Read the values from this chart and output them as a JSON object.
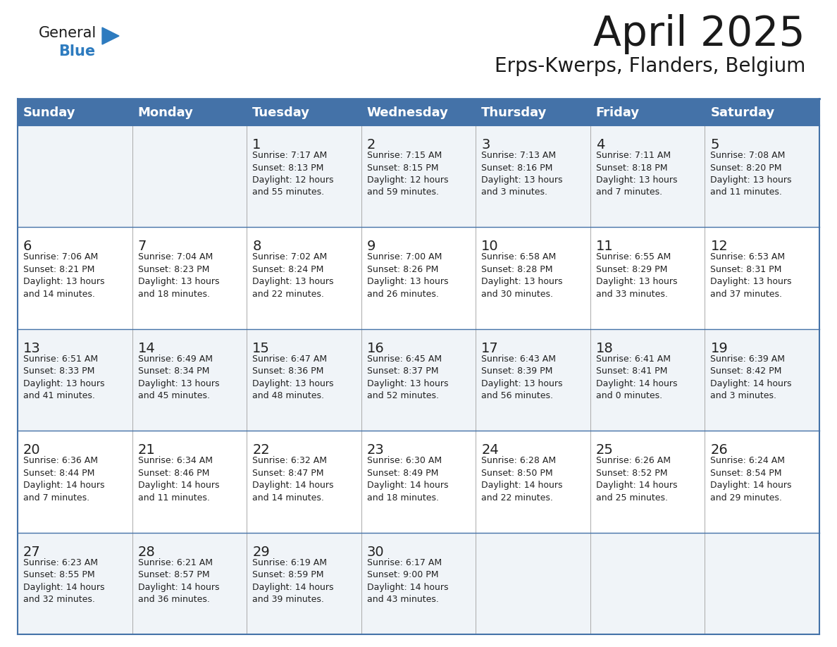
{
  "title": "April 2025",
  "subtitle": "Erps-Kwerps, Flanders, Belgium",
  "days_of_week": [
    "Sunday",
    "Monday",
    "Tuesday",
    "Wednesday",
    "Thursday",
    "Friday",
    "Saturday"
  ],
  "header_bg": "#4472a8",
  "header_text": "#ffffff",
  "cell_bg_even": "#f0f4f8",
  "cell_bg_odd": "#ffffff",
  "cell_text": "#222222",
  "border_color": "#4472a8",
  "grid_color": "#aaaaaa",
  "title_color": "#1a1a1a",
  "subtitle_color": "#1a1a1a",
  "logo_general_color": "#1a1a1a",
  "logo_blue_color": "#2d7bbf",
  "weeks": [
    [
      {
        "day": null,
        "info": ""
      },
      {
        "day": null,
        "info": ""
      },
      {
        "day": 1,
        "info": "Sunrise: 7:17 AM\nSunset: 8:13 PM\nDaylight: 12 hours\nand 55 minutes."
      },
      {
        "day": 2,
        "info": "Sunrise: 7:15 AM\nSunset: 8:15 PM\nDaylight: 12 hours\nand 59 minutes."
      },
      {
        "day": 3,
        "info": "Sunrise: 7:13 AM\nSunset: 8:16 PM\nDaylight: 13 hours\nand 3 minutes."
      },
      {
        "day": 4,
        "info": "Sunrise: 7:11 AM\nSunset: 8:18 PM\nDaylight: 13 hours\nand 7 minutes."
      },
      {
        "day": 5,
        "info": "Sunrise: 7:08 AM\nSunset: 8:20 PM\nDaylight: 13 hours\nand 11 minutes."
      }
    ],
    [
      {
        "day": 6,
        "info": "Sunrise: 7:06 AM\nSunset: 8:21 PM\nDaylight: 13 hours\nand 14 minutes."
      },
      {
        "day": 7,
        "info": "Sunrise: 7:04 AM\nSunset: 8:23 PM\nDaylight: 13 hours\nand 18 minutes."
      },
      {
        "day": 8,
        "info": "Sunrise: 7:02 AM\nSunset: 8:24 PM\nDaylight: 13 hours\nand 22 minutes."
      },
      {
        "day": 9,
        "info": "Sunrise: 7:00 AM\nSunset: 8:26 PM\nDaylight: 13 hours\nand 26 minutes."
      },
      {
        "day": 10,
        "info": "Sunrise: 6:58 AM\nSunset: 8:28 PM\nDaylight: 13 hours\nand 30 minutes."
      },
      {
        "day": 11,
        "info": "Sunrise: 6:55 AM\nSunset: 8:29 PM\nDaylight: 13 hours\nand 33 minutes."
      },
      {
        "day": 12,
        "info": "Sunrise: 6:53 AM\nSunset: 8:31 PM\nDaylight: 13 hours\nand 37 minutes."
      }
    ],
    [
      {
        "day": 13,
        "info": "Sunrise: 6:51 AM\nSunset: 8:33 PM\nDaylight: 13 hours\nand 41 minutes."
      },
      {
        "day": 14,
        "info": "Sunrise: 6:49 AM\nSunset: 8:34 PM\nDaylight: 13 hours\nand 45 minutes."
      },
      {
        "day": 15,
        "info": "Sunrise: 6:47 AM\nSunset: 8:36 PM\nDaylight: 13 hours\nand 48 minutes."
      },
      {
        "day": 16,
        "info": "Sunrise: 6:45 AM\nSunset: 8:37 PM\nDaylight: 13 hours\nand 52 minutes."
      },
      {
        "day": 17,
        "info": "Sunrise: 6:43 AM\nSunset: 8:39 PM\nDaylight: 13 hours\nand 56 minutes."
      },
      {
        "day": 18,
        "info": "Sunrise: 6:41 AM\nSunset: 8:41 PM\nDaylight: 14 hours\nand 0 minutes."
      },
      {
        "day": 19,
        "info": "Sunrise: 6:39 AM\nSunset: 8:42 PM\nDaylight: 14 hours\nand 3 minutes."
      }
    ],
    [
      {
        "day": 20,
        "info": "Sunrise: 6:36 AM\nSunset: 8:44 PM\nDaylight: 14 hours\nand 7 minutes."
      },
      {
        "day": 21,
        "info": "Sunrise: 6:34 AM\nSunset: 8:46 PM\nDaylight: 14 hours\nand 11 minutes."
      },
      {
        "day": 22,
        "info": "Sunrise: 6:32 AM\nSunset: 8:47 PM\nDaylight: 14 hours\nand 14 minutes."
      },
      {
        "day": 23,
        "info": "Sunrise: 6:30 AM\nSunset: 8:49 PM\nDaylight: 14 hours\nand 18 minutes."
      },
      {
        "day": 24,
        "info": "Sunrise: 6:28 AM\nSunset: 8:50 PM\nDaylight: 14 hours\nand 22 minutes."
      },
      {
        "day": 25,
        "info": "Sunrise: 6:26 AM\nSunset: 8:52 PM\nDaylight: 14 hours\nand 25 minutes."
      },
      {
        "day": 26,
        "info": "Sunrise: 6:24 AM\nSunset: 8:54 PM\nDaylight: 14 hours\nand 29 minutes."
      }
    ],
    [
      {
        "day": 27,
        "info": "Sunrise: 6:23 AM\nSunset: 8:55 PM\nDaylight: 14 hours\nand 32 minutes."
      },
      {
        "day": 28,
        "info": "Sunrise: 6:21 AM\nSunset: 8:57 PM\nDaylight: 14 hours\nand 36 minutes."
      },
      {
        "day": 29,
        "info": "Sunrise: 6:19 AM\nSunset: 8:59 PM\nDaylight: 14 hours\nand 39 minutes."
      },
      {
        "day": 30,
        "info": "Sunrise: 6:17 AM\nSunset: 9:00 PM\nDaylight: 14 hours\nand 43 minutes."
      },
      {
        "day": null,
        "info": ""
      },
      {
        "day": null,
        "info": ""
      },
      {
        "day": null,
        "info": ""
      }
    ]
  ]
}
